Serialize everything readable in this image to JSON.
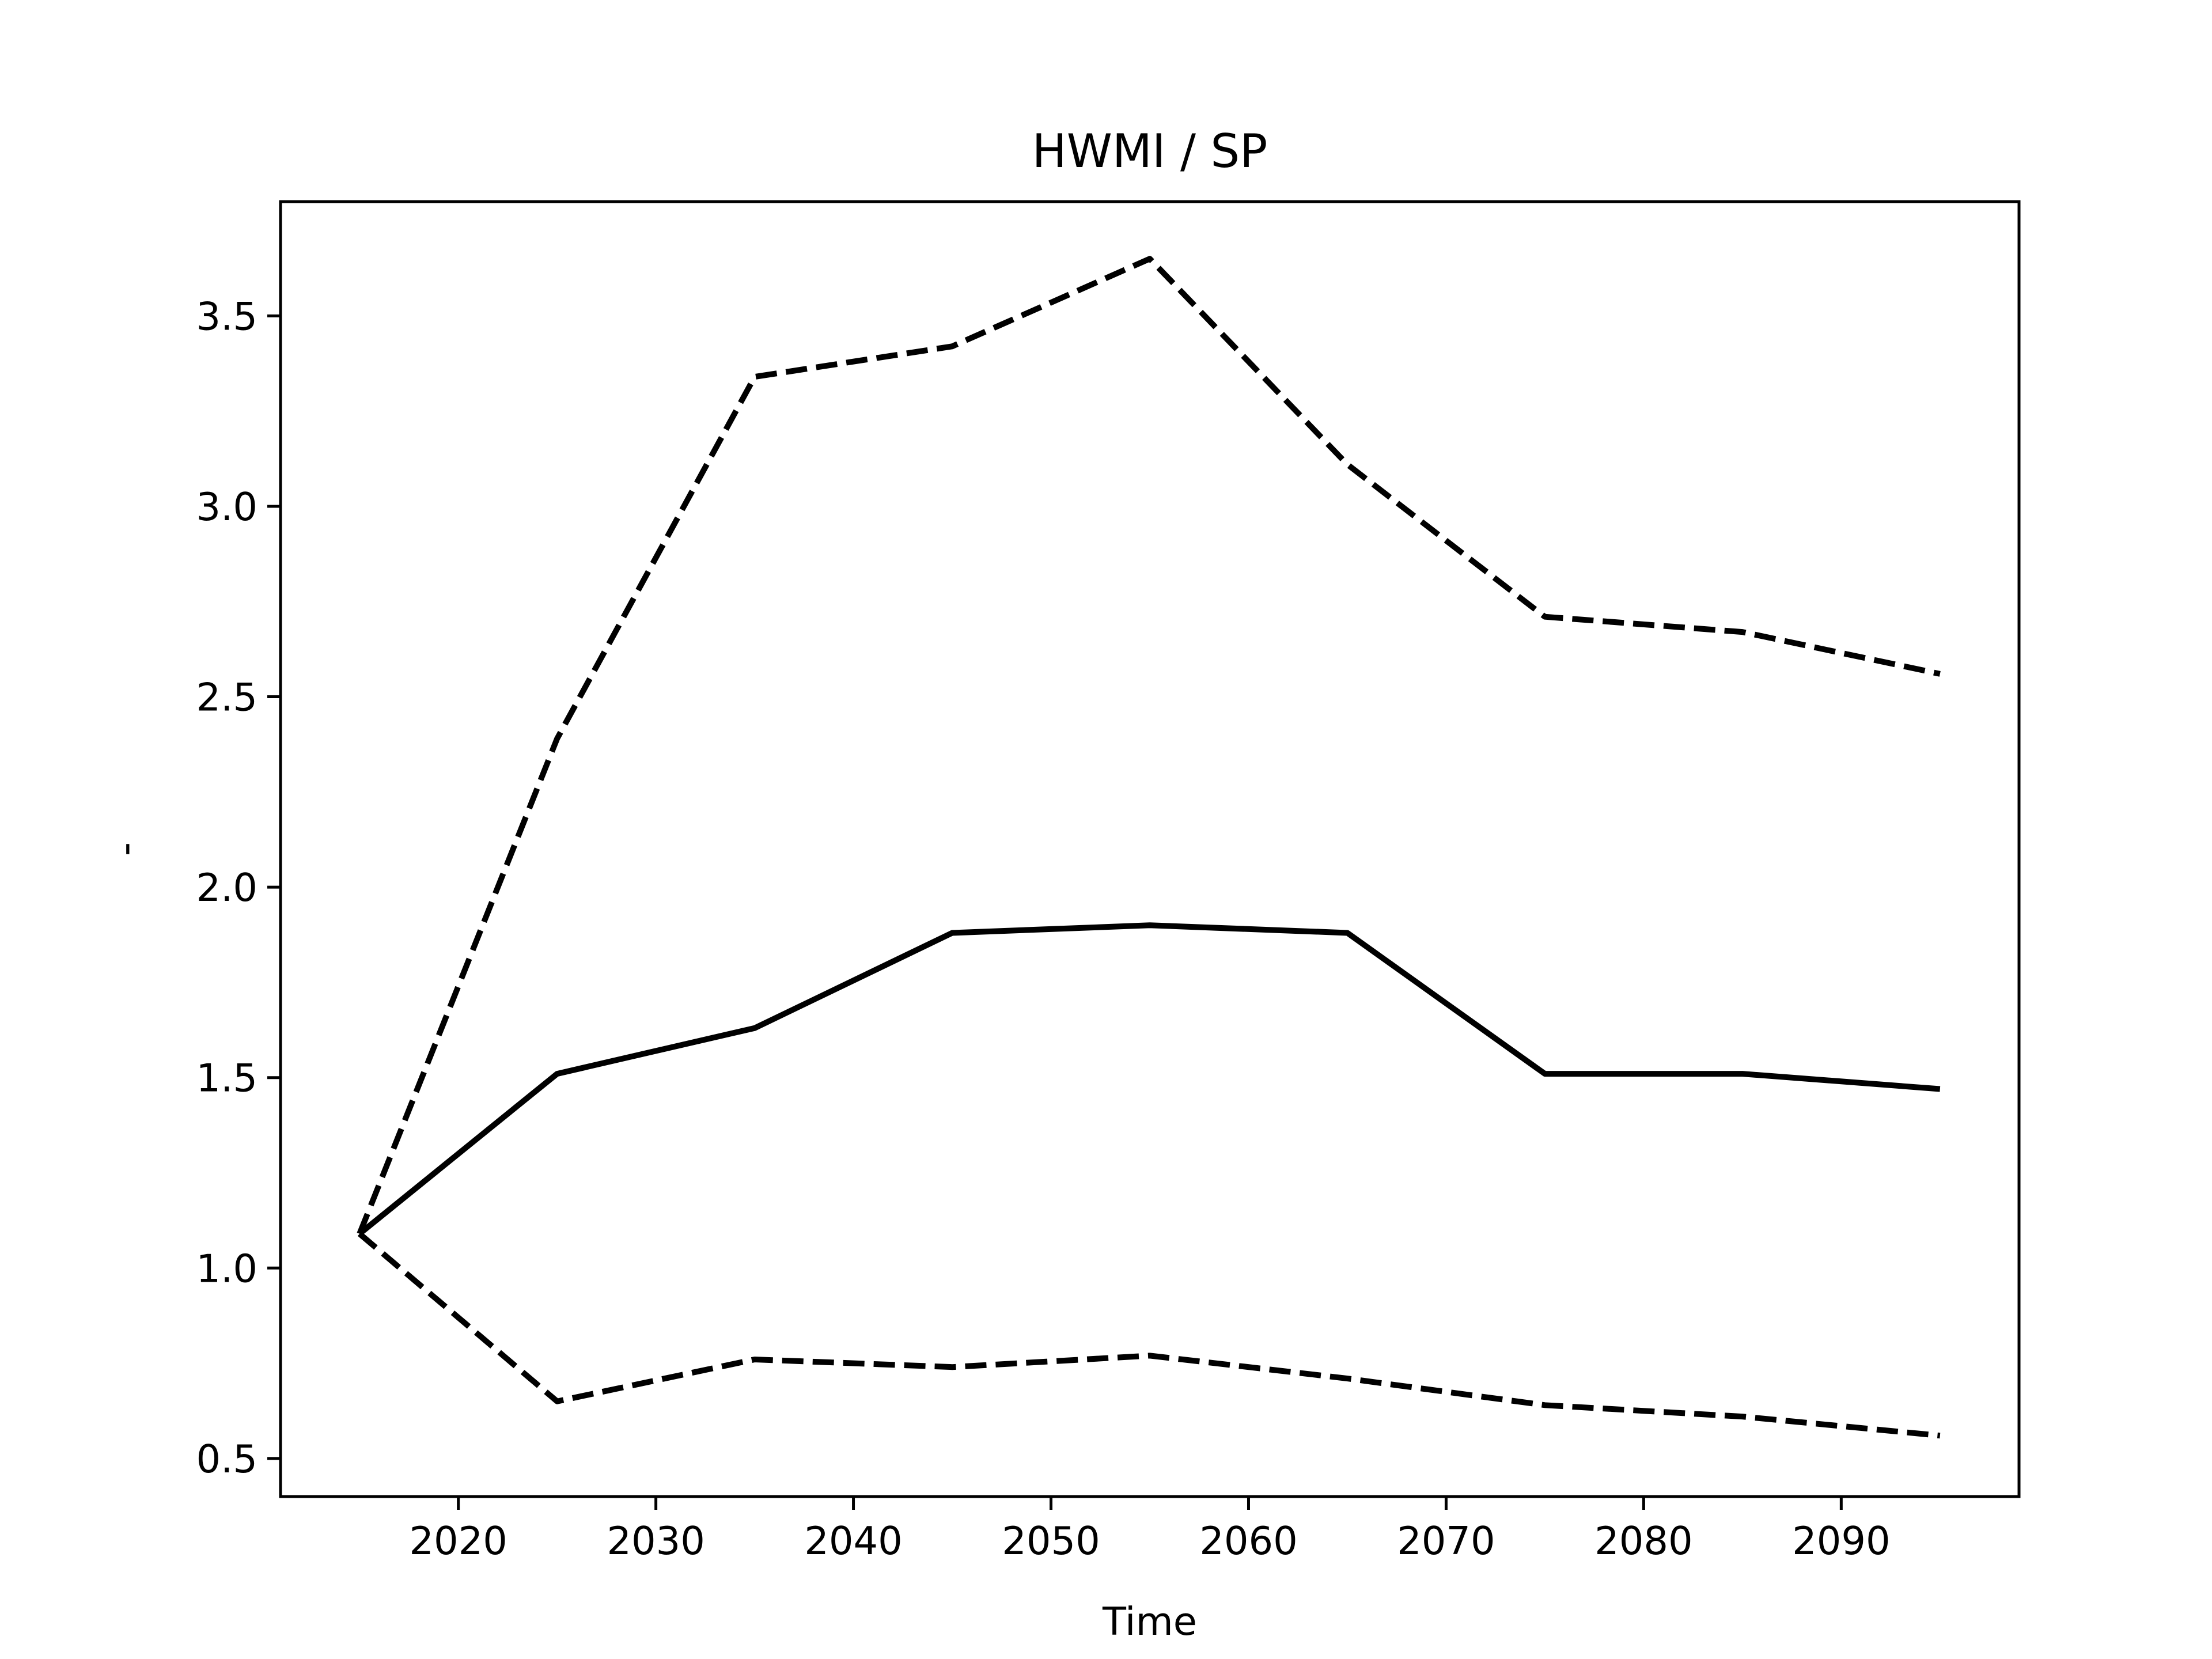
{
  "chart_data": {
    "type": "line",
    "title": "HWMI / SP",
    "xlabel": "Time",
    "ylabel": "-",
    "x": [
      2015,
      2025,
      2035,
      2045,
      2055,
      2065,
      2075,
      2085,
      2095
    ],
    "series": [
      {
        "color": "#000000",
        "linestyle": "solid",
        "values": [
          1.09,
          1.51,
          1.63,
          1.88,
          1.9,
          1.88,
          1.51,
          1.51,
          1.47
        ]
      },
      {
        "color": "#000000",
        "linestyle": "dashed",
        "values": [
          1.09,
          2.39,
          3.34,
          3.42,
          3.65,
          3.11,
          2.71,
          2.67,
          2.56
        ]
      },
      {
        "color": "#000000",
        "linestyle": "dashed",
        "values": [
          1.09,
          0.65,
          0.76,
          0.74,
          0.77,
          0.71,
          0.64,
          0.61,
          0.56
        ]
      }
    ],
    "xlim": [
      2011,
      2099
    ],
    "xticks": [
      2020,
      2030,
      2040,
      2050,
      2060,
      2070,
      2080,
      2090
    ],
    "ylim": [
      0.4,
      3.8
    ],
    "yticks": [
      {
        "value": 0.5,
        "label": "0.5"
      },
      {
        "value": 1,
        "label": "1.0"
      },
      {
        "value": 1.5,
        "label": "1.5"
      },
      {
        "value": 2,
        "label": "2.0"
      },
      {
        "value": 2.5,
        "label": "2.5"
      },
      {
        "value": 3,
        "label": "3.0"
      },
      {
        "value": 3.5,
        "label": "3.5"
      }
    ],
    "grid": false
  }
}
